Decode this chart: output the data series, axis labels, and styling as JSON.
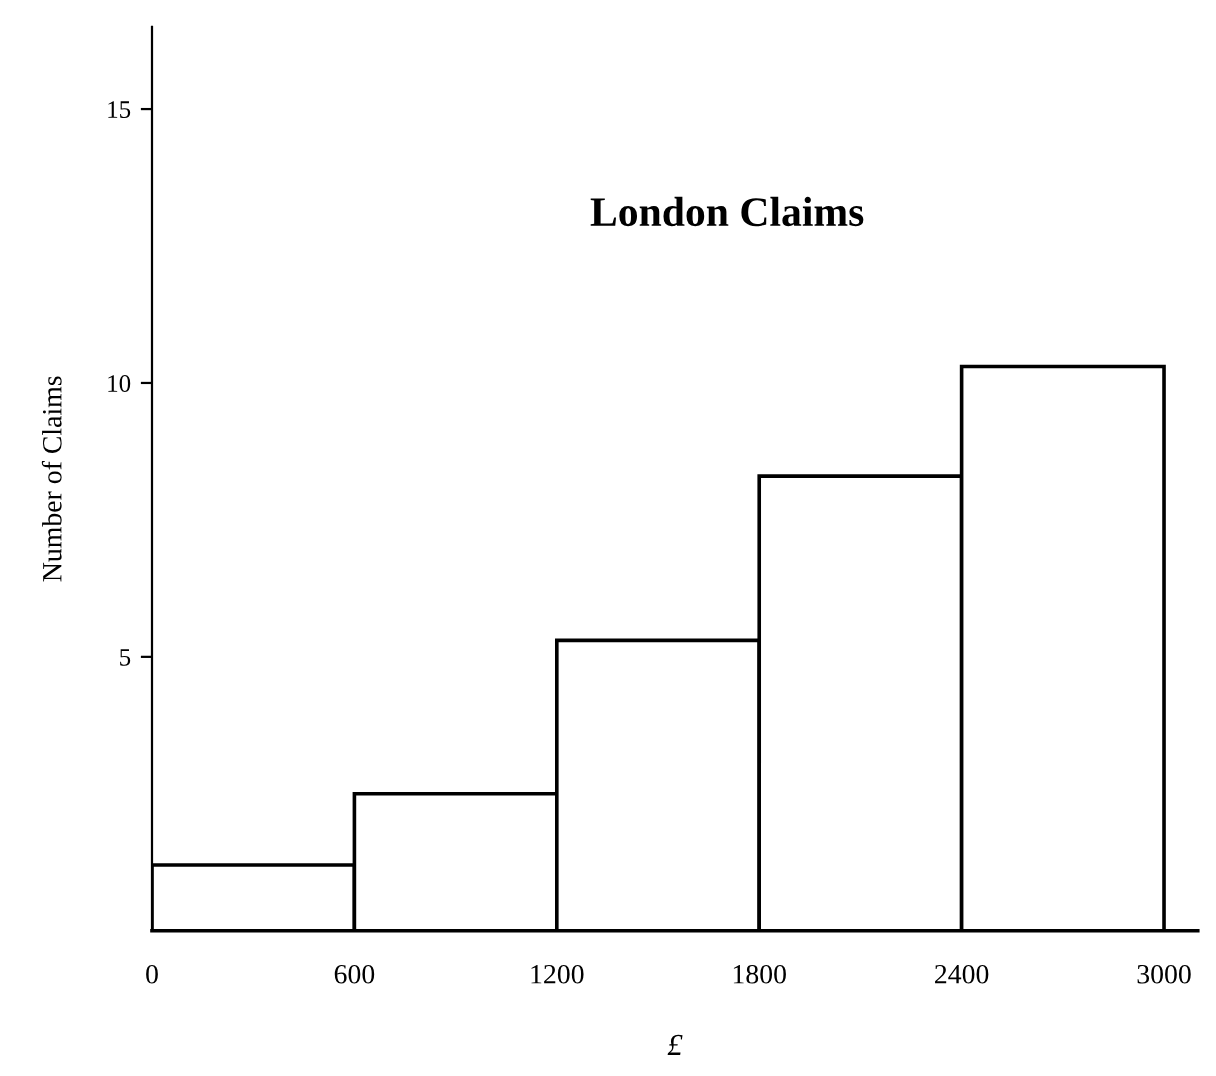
{
  "chart_data": {
    "type": "histogram",
    "title": "London Claims",
    "xlabel": "£",
    "ylabel": "Number of Claims",
    "bins": [
      0,
      600,
      1200,
      1800,
      2400,
      3000
    ],
    "values": [
      1.2,
      2.5,
      5.3,
      8.3,
      10.3
    ],
    "color": "#ffffff",
    "xlim": [
      0,
      3100
    ],
    "xticks": [
      0,
      600,
      1200,
      1800,
      2400,
      3000
    ],
    "ylim": [
      0,
      16.5
    ],
    "yticks": [
      5,
      10,
      15
    ],
    "grid": false
  }
}
